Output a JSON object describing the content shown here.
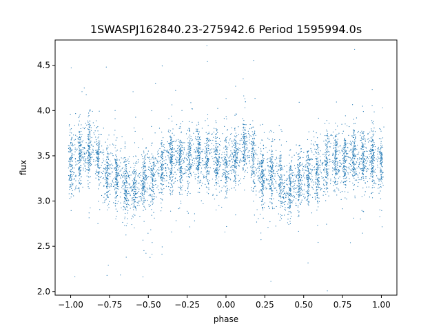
{
  "chart_data": {
    "type": "scatter",
    "title": "1SWASPJ162840.23-275942.6 Period 1595994.0s",
    "xlabel": "phase",
    "ylabel": "flux",
    "xlim": [
      -1.1,
      1.1
    ],
    "ylim": [
      1.96,
      4.78
    ],
    "xticks": [
      -1.0,
      -0.75,
      -0.5,
      -0.25,
      0.0,
      0.25,
      0.5,
      0.75,
      1.0
    ],
    "xtick_labels": [
      "−1.00",
      "−0.75",
      "−0.50",
      "−0.25",
      "0.00",
      "0.25",
      "0.50",
      "0.75",
      "1.00"
    ],
    "yticks": [
      2.0,
      2.5,
      3.0,
      3.5,
      4.0,
      4.5
    ],
    "ytick_labels": [
      "2.0",
      "2.5",
      "3.0",
      "3.5",
      "4.0",
      "4.5"
    ],
    "grid": false,
    "marker_color": "#1f77b4",
    "point_count": 6000,
    "phase_profile": {
      "phase": [
        0.0,
        0.05,
        0.1,
        0.15,
        0.2,
        0.25,
        0.3,
        0.35,
        0.4,
        0.45,
        0.5,
        0.55,
        0.6,
        0.65,
        0.7,
        0.75,
        0.8,
        0.85,
        0.9,
        0.95,
        1.0
      ],
      "median_flux": [
        3.42,
        3.45,
        3.55,
        3.6,
        3.35,
        3.25,
        3.3,
        3.2,
        3.1,
        3.2,
        3.25,
        3.3,
        3.35,
        3.45,
        3.42,
        3.45,
        3.5,
        3.48,
        3.45,
        3.44,
        3.42
      ]
    }
  }
}
